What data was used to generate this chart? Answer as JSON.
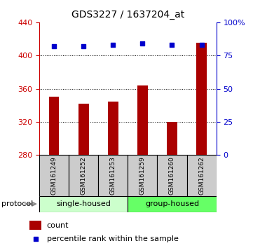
{
  "title": "GDS3227 / 1637204_at",
  "samples": [
    "GSM161249",
    "GSM161252",
    "GSM161253",
    "GSM161259",
    "GSM161260",
    "GSM161262"
  ],
  "counts": [
    350,
    342,
    344,
    364,
    320,
    415
  ],
  "percentile_ranks": [
    82,
    82,
    83,
    84,
    83,
    83
  ],
  "bar_color": "#aa0000",
  "dot_color": "#0000cc",
  "left_ylim": [
    280,
    440
  ],
  "right_ylim": [
    0,
    100
  ],
  "left_yticks": [
    280,
    320,
    360,
    400,
    440
  ],
  "right_yticks": [
    0,
    25,
    50,
    75,
    100
  ],
  "right_yticklabels": [
    "0",
    "25",
    "50",
    "75",
    "100%"
  ],
  "gridlines_at": [
    320,
    360,
    400
  ],
  "protocol_labels": [
    "single-housed",
    "group-housed"
  ],
  "protocol_colors": [
    "#ccffcc",
    "#66ff66"
  ],
  "left_axis_color": "#cc0000",
  "right_axis_color": "#0000cc",
  "sample_box_color": "#cccccc",
  "bar_width": 0.35
}
